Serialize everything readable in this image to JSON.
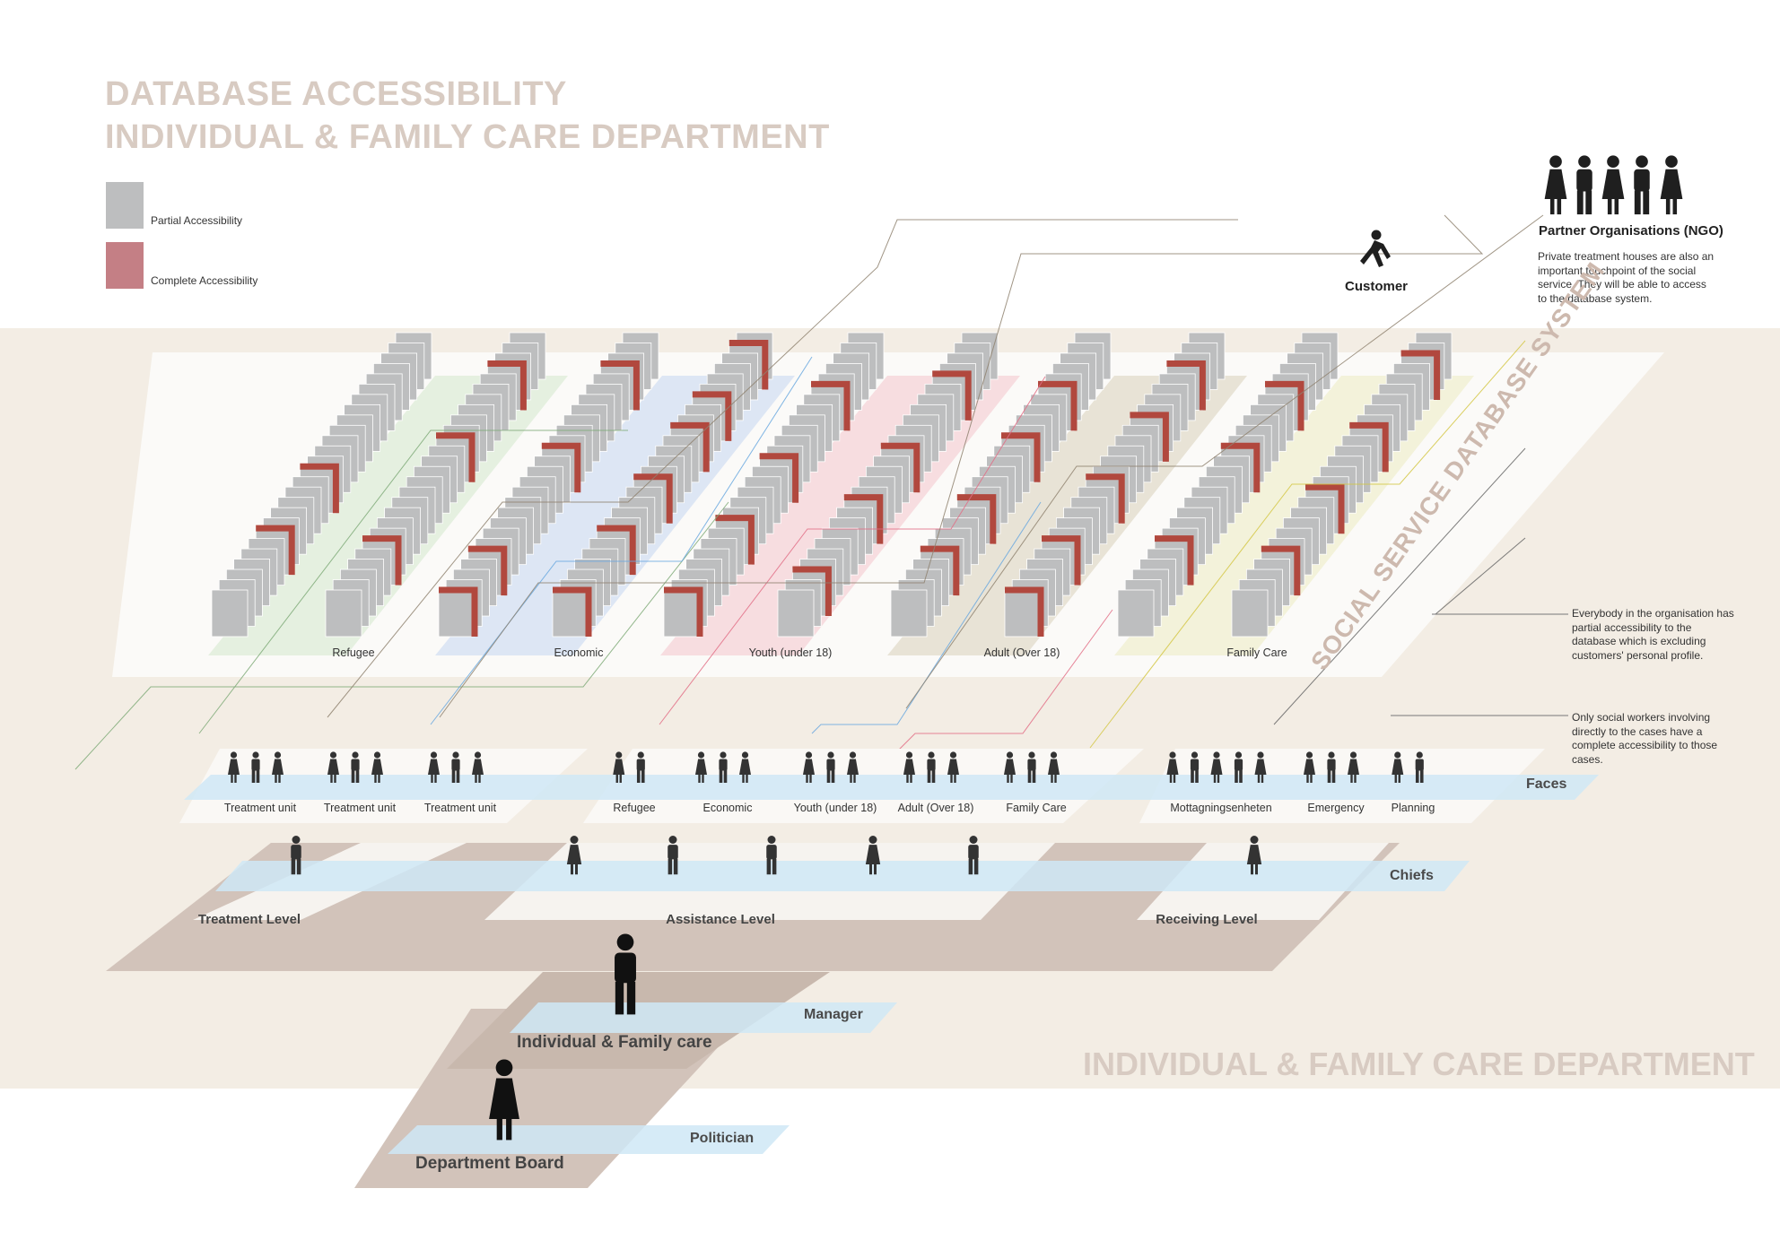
{
  "header": {
    "title_line1": "DATABASE ACCESSIBILITY",
    "title_line2": "INDIVIDUAL & FAMILY CARE DEPARTMENT"
  },
  "legend": {
    "partial_label": "Partial Accessibility",
    "partial_color": "#bdbebf",
    "complete_label": "Complete Accessibility",
    "complete_color": "#c47f85"
  },
  "database": {
    "system_label": "SOCIAL SERVICE DATABASE SYSTEM",
    "columns": [
      {
        "label": "Refugee",
        "tint": "#e5f0e0",
        "line": "#7faa78"
      },
      {
        "label": "Economic",
        "tint": "#dde6f4",
        "line": "#6aa8df"
      },
      {
        "label": "Youth (under 18)",
        "tint": "#f7dde0",
        "line": "#e26f86"
      },
      {
        "label": "Adult (Over 18)",
        "tint": "#e8e3d6",
        "line": "#8f8370"
      },
      {
        "label": "Family Care",
        "tint": "#f3f2da",
        "line": "#d4c744"
      }
    ]
  },
  "actors": {
    "customer_label": "Customer",
    "ngo_title": "Partner Organisations (NGO)",
    "ngo_description": "Private treatment houses are also an important touchpoint of the social service. They will be able to access to the database system."
  },
  "notes": {
    "partial_note": "Everybody in the organisation has partial accessibility to the database which is excluding customers' personal profile.",
    "complete_note": "Only social workers involving directly to the cases have a complete accessibility to those cases."
  },
  "roles": {
    "faces_label": "Faces",
    "chiefs_label": "Chiefs",
    "manager_label": "Manager",
    "politician_label": "Politician"
  },
  "levels": {
    "treatment": "Treatment Level",
    "assistance": "Assistance Level",
    "receiving": "Receiving Level",
    "individual_family": "Individual & Family care",
    "department_board": "Department Board"
  },
  "units": [
    {
      "label": "Treatment unit",
      "count": 3
    },
    {
      "label": "Treatment unit",
      "count": 3
    },
    {
      "label": "Treatment unit",
      "count": 3
    },
    {
      "label": "Refugee",
      "count": 2
    },
    {
      "label": "Economic",
      "count": 3
    },
    {
      "label": "Youth (under 18)",
      "count": 3
    },
    {
      "label": "Adult (Over 18)",
      "count": 3
    },
    {
      "label": "Family Care",
      "count": 3
    },
    {
      "label": "Mottagningsenheten",
      "count": 5
    },
    {
      "label": "Emergency",
      "count": 3
    },
    {
      "label": "Planning",
      "count": 2
    }
  ],
  "footer": {
    "department_label": "INDIVIDUAL & FAMILY CARE DEPARTMENT"
  },
  "colors": {
    "floor_band": "#f3ede4",
    "plane": "#d2c3ba",
    "role_band": "#cfe8f6",
    "person": "#333333"
  }
}
